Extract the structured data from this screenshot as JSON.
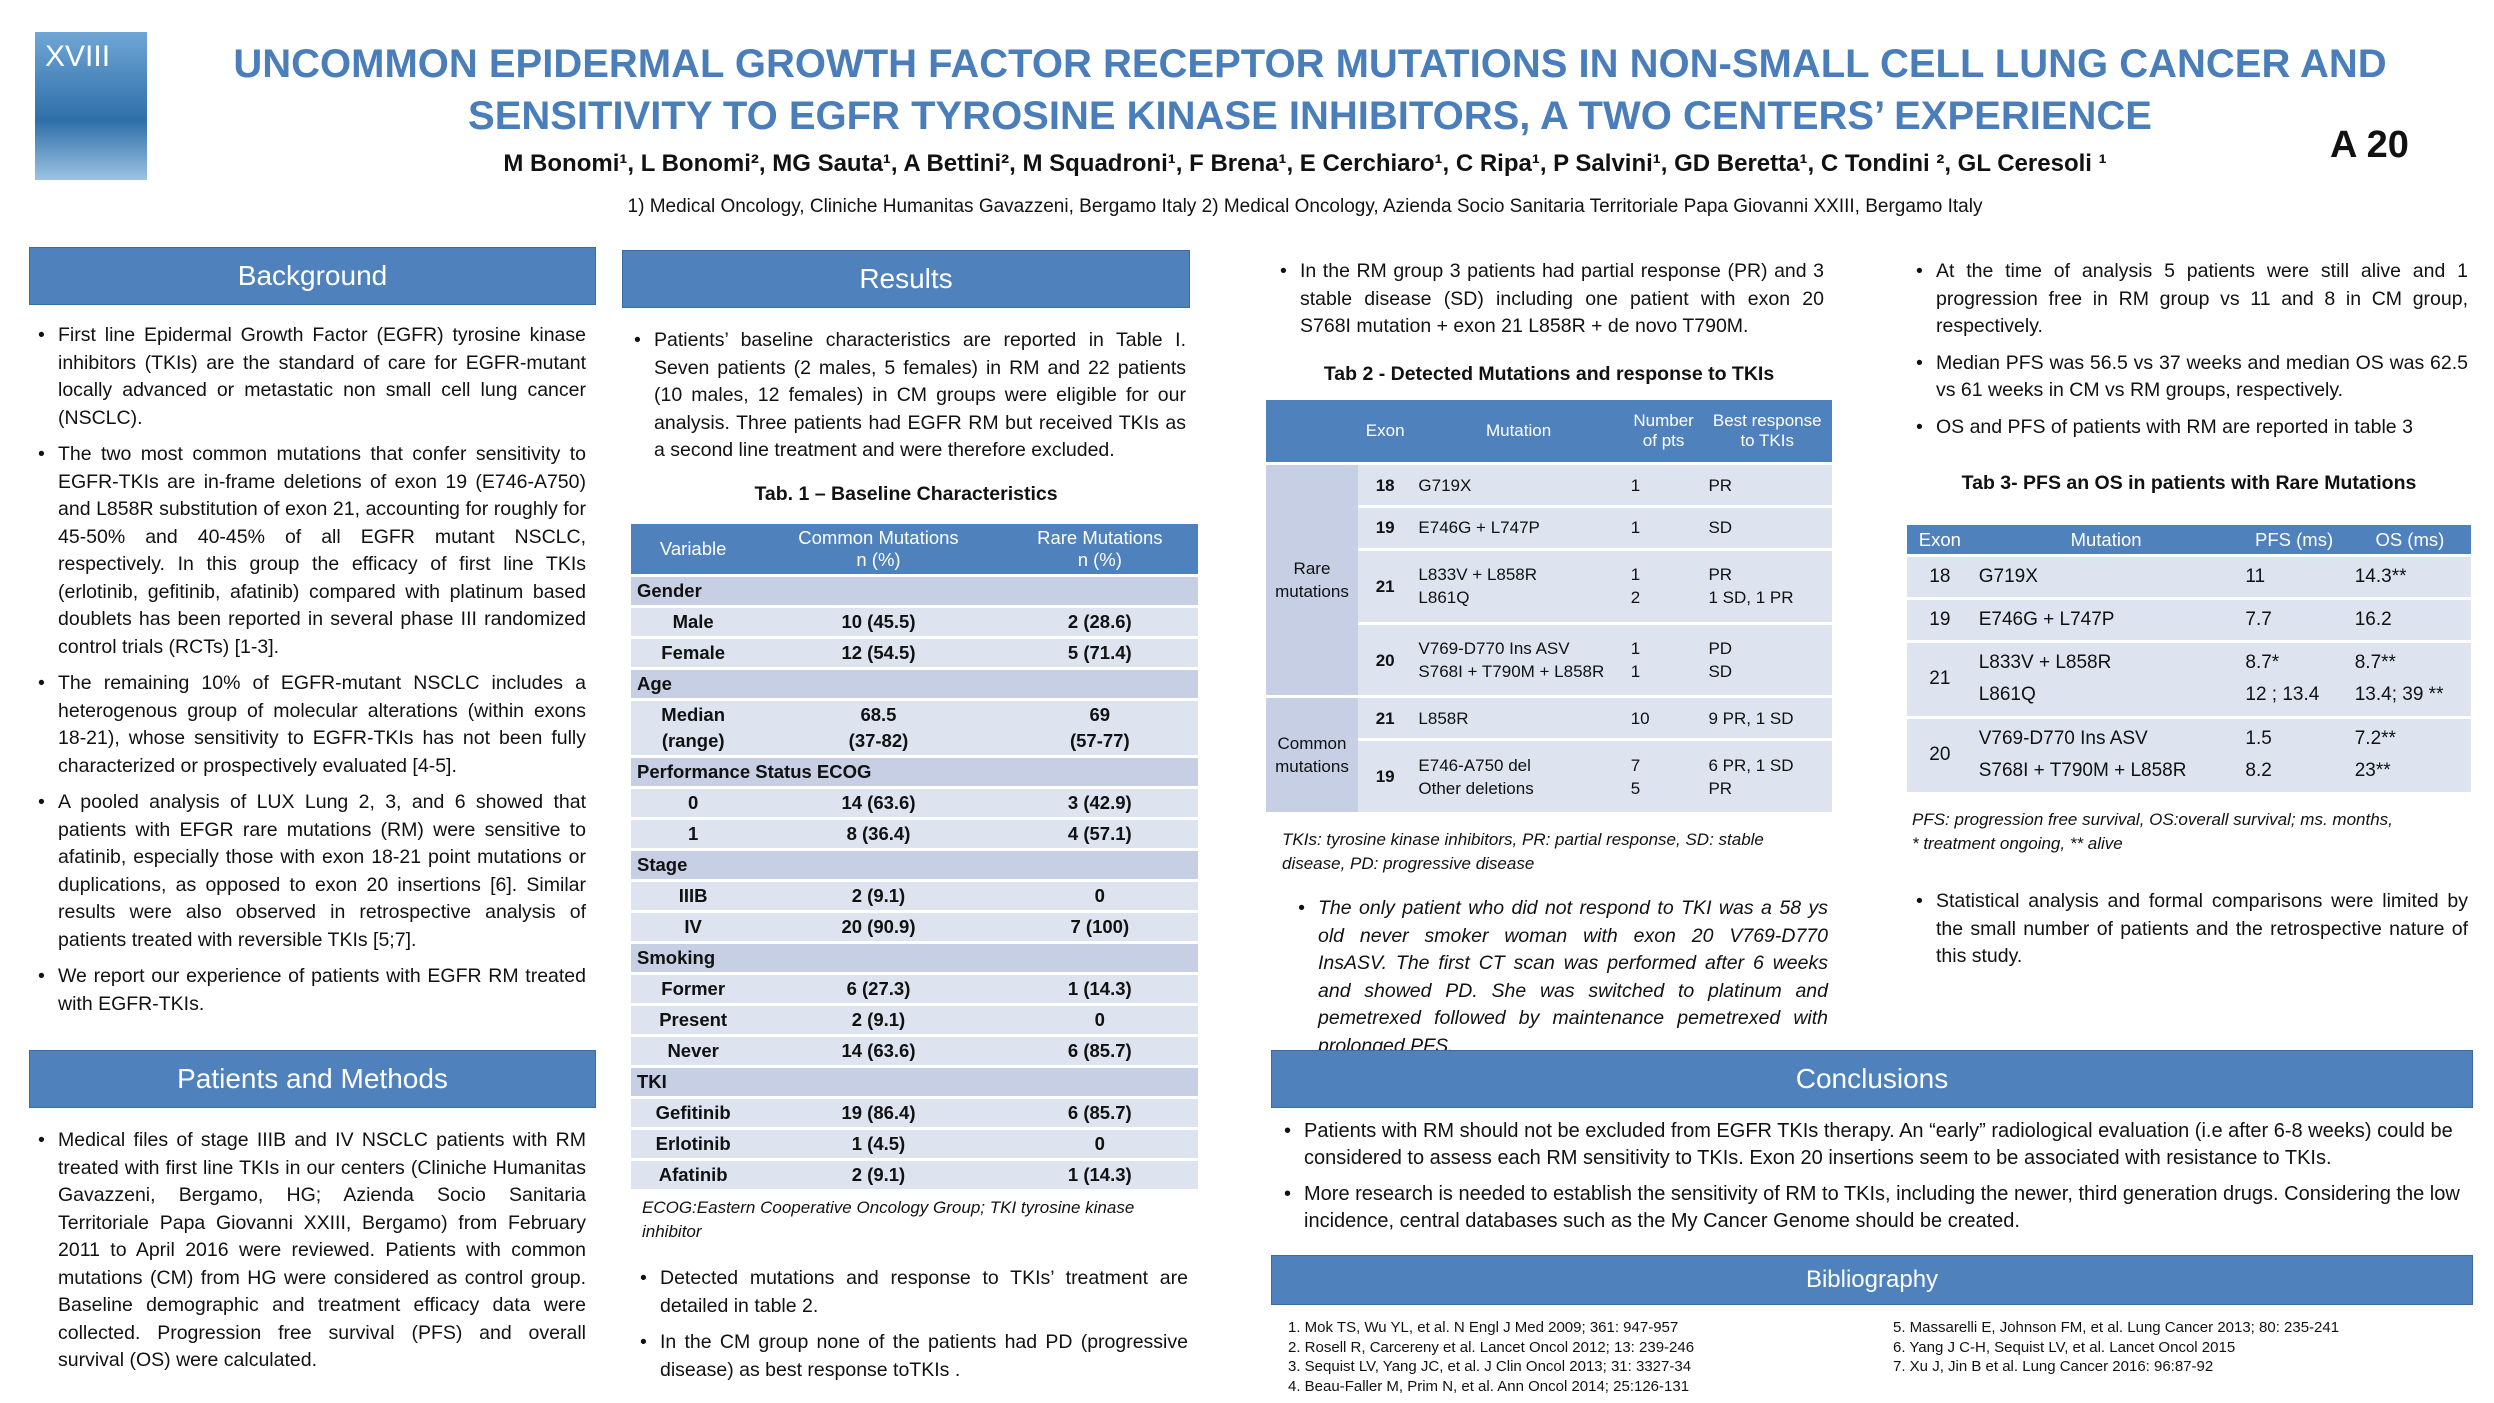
{
  "header": {
    "logo_text": "XVIII",
    "title": "UNCOMMON EPIDERMAL GROWTH FACTOR RECEPTOR MUTATIONS IN NON-SMALL CELL LUNG CANCER AND SENSITIVITY TO EGFR TYROSINE KINASE INHIBITORS, A TWO CENTERS’ EXPERIENCE",
    "authors": "M Bonomi¹, L Bonomi², MG Sauta¹, A Bettini², M Squadroni¹, F Brena¹, E Cerchiaro¹, C Ripa¹, P Salvini¹, GD Beretta¹, C Tondini ², GL Ceresoli ¹",
    "affiliations": "1) Medical Oncology, Cliniche  Humanitas Gavazzeni, Bergamo Italy  2) Medical Oncology, Azienda Socio Sanitaria Territoriale Papa Giovanni XXIII, Bergamo Italy",
    "code": "A 20"
  },
  "background": {
    "heading": "Background",
    "bullets": [
      "First line Epidermal Growth Factor (EGFR) tyrosine kinase inhibitors (TKIs) are the standard of care for EGFR-mutant locally advanced or metastatic non small cell lung cancer (NSCLC).",
      "The two most common mutations that confer sensitivity to EGFR-TKIs are in-frame deletions of exon 19 (E746-A750) and L858R substitution of exon 21, accounting for roughly for 45-50% and 40-45% of all EGFR mutant NSCLC, respectively. In this group the efficacy of first line TKIs (erlotinib, gefitinib, afatinib) compared with platinum based doublets has been reported in several phase III randomized control trials (RCTs) [1-3].",
      "The remaining 10% of EGFR-mutant NSCLC includes a heterogenous group of molecular alterations (within exons 18-21), whose sensitivity to EGFR-TKIs has not been fully characterized or prospectively evaluated [4-5].",
      "A pooled analysis of LUX Lung 2, 3, and 6 showed that patients  with EFGR rare mutations (RM) were sensitive to afatinib, especially those with exon 18-21 point mutations or duplications, as opposed to exon 20 insertions [6]. Similar results were also observed in retrospective analysis of patients treated with reversible TKIs [5;7].",
      "We report our experience of patients with EGFR RM treated with EGFR-TKIs."
    ]
  },
  "patients_methods": {
    "heading": "Patients and Methods",
    "bullets": [
      "Medical files of stage IIIB and IV NSCLC patients with RM treated with first line TKIs in our centers (Cliniche Humanitas Gavazzeni, Bergamo, HG; Azienda Socio Sanitaria Territoriale Papa Giovanni XXIII, Bergamo) from February 2011 to April 2016 were reviewed. Patients with common mutations (CM) from HG were considered as control group. Baseline demographic and treatment efficacy data were collected. Progression free survival (PFS) and overall survival (OS) were calculated."
    ]
  },
  "results": {
    "heading": "Results",
    "bullets_top": [
      "Patients’ baseline characteristics are reported in Table I. Seven patients (2 males, 5 females) in RM and 22 patients (10 males, 12 females) in CM groups were eligible for our analysis. Three patients had EGFR RM but received TKIs as a second line treatment and were therefore excluded."
    ],
    "table1": {
      "title": "Tab. 1 – Baseline Characteristics",
      "header": [
        "Variable",
        "Common Mutations\nn (%)",
        "Rare Mutations\nn (%)"
      ],
      "rows": [
        [
          "Gender"
        ],
        [
          "Male",
          "10 (45.5)",
          "2 (28.6)"
        ],
        [
          "Female",
          "12 (54.5)",
          "5 (71.4)"
        ],
        [
          "Age"
        ],
        [
          "Median\n(range)",
          "68.5\n(37-82)",
          "69\n(57-77)"
        ],
        [
          "Performance Status ECOG"
        ],
        [
          "0",
          "14 (63.6)",
          "3 (42.9)"
        ],
        [
          "1",
          "8 (36.4)",
          "4 (57.1)"
        ],
        [
          "Stage"
        ],
        [
          "IIIB",
          "2 (9.1)",
          "0"
        ],
        [
          "IV",
          "20 (90.9)",
          "7 (100)"
        ],
        [
          "Smoking"
        ],
        [
          "Former",
          "6 (27.3)",
          "1 (14.3)"
        ],
        [
          "Present",
          "2 (9.1)",
          "0"
        ],
        [
          "Never",
          "14 (63.6)",
          "6 (85.7)"
        ],
        [
          "TKI"
        ],
        [
          "Gefitinib",
          "19 (86.4)",
          "6 (85.7)"
        ],
        [
          "Erlotinib",
          "1 (4.5)",
          "0"
        ],
        [
          "Afatinib",
          "2 (9.1)",
          "1 (14.3)"
        ]
      ],
      "note": "ECOG:Eastern Cooperative Oncology Group; TKI tyrosine kinase inhibitor"
    },
    "bullets_bottom": [
      "Detected mutations and response to TKIs’ treatment are detailed in table 2.",
      "In the CM group none of the patients had PD (progressive disease) as best response toTKIs ."
    ],
    "col3_bullets": [
      "In the RM group 3 patients had partial response (PR) and 3 stable disease (SD) including one patient with exon 20 S768I mutation + exon 21 L858R + de novo T790M."
    ],
    "table2": {
      "title": "Tab 2 - Detected Mutations and response to TKIs",
      "header": [
        "Exon",
        "Mutation",
        "Number\nof pts",
        "Best response\nto TKIs"
      ],
      "groups": [
        {
          "label": "Rare\nmutations",
          "rows": [
            [
              "18",
              "G719X",
              "1",
              "PR"
            ],
            [
              "19",
              "E746G + L747P",
              "1",
              "SD"
            ],
            [
              "21",
              "L833V + L858R\nL861Q",
              "1\n2",
              "PR\n1 SD, 1 PR"
            ],
            [
              "20",
              "V769-D770 Ins ASV\nS768I + T790M + L858R",
              "1\n1",
              "PD\nSD"
            ]
          ]
        },
        {
          "label": "Common\nmutations",
          "rows": [
            [
              "21",
              "L858R",
              "10",
              "9 PR, 1 SD"
            ],
            [
              "19",
              "E746-A750 del\nOther deletions",
              "7\n5",
              "6 PR, 1 SD\nPR"
            ]
          ]
        }
      ],
      "note": "TKIs: tyrosine kinase inhibitors, PR: partial response, SD: stable disease, PD: progressive disease"
    },
    "col3_italic": [
      "The only patient who did not respond to TKI was a 58 ys old never smoker woman with exon 20 V769-D770 InsASV. The first CT scan was performed after 6 weeks and showed PD. She was switched to platinum and pemetrexed followed by maintenance pemetrexed with prolonged PFS."
    ],
    "col4_bullets": [
      "At the time of analysis 5 patients were still alive and 1 progression free in RM group vs 11 and 8 in CM group, respectively.",
      "Median PFS was 56.5 vs 37 weeks and median OS was 62.5 vs 61 weeks in CM vs RM groups, respectively.",
      "OS and PFS of patients with RM are reported in table 3"
    ],
    "table3": {
      "title": "Tab 3- PFS an OS in patients with Rare Mutations",
      "header": [
        "Exon",
        "Mutation",
        "PFS (ms)",
        "OS (ms)"
      ],
      "rows": [
        [
          "18",
          "G719X",
          "11",
          "14.3**"
        ],
        [
          "19",
          "E746G + L747P",
          "7.7",
          "16.2"
        ],
        [
          "21",
          "L833V + L858R\nL861Q",
          "8.7*\n12 ; 13.4",
          "8.7**\n13.4; 39 **"
        ],
        [
          "20",
          "V769-D770 Ins ASV\nS768I + T790M + L858R",
          "1.5\n8.2",
          "7.2**\n23**"
        ]
      ],
      "notes": [
        "PFS: progression free survival, OS:overall survival; ms. months,",
        "* treatment ongoing, ** alive"
      ]
    },
    "col4_bottom": [
      "Statistical analysis and formal comparisons were limited by the small number of patients and the retrospective nature of this study."
    ]
  },
  "conclusions": {
    "heading": "Conclusions",
    "bullets": [
      "Patients with RM should not be excluded from EGFR TKIs therapy. An “early” radiological evaluation (i.e after 6-8 weeks) could be considered to assess each RM sensitivity to TKIs. Exon 20 insertions seem to be associated with resistance to TKIs.",
      "More research is needed to establish the sensitivity of RM to TKIs, including the newer, third generation drugs. Considering the low incidence, central databases such as the My Cancer Genome should be created."
    ]
  },
  "bibliography": {
    "heading": "Bibliography",
    "left": [
      "1. Mok TS, Wu YL, et al. N Engl J Med 2009; 361: 947-957",
      "2. Rosell R, Carcereny et al. Lancet Oncol 2012; 13: 239-246",
      "3. Sequist LV, Yang JC, et al. J Clin Oncol 2013; 31: 3327-34",
      "4. Beau-Faller M, Prim N, et al. Ann Oncol 2014; 25:126-131"
    ],
    "right": [
      "5. Massarelli E, Johnson FM, et al. Lung Cancer 2013; 80: 235-241",
      "6. Yang J C-H, Sequist LV, et al. Lancet Oncol 2015",
      "7. Xu J, Jin B et al. Lung Cancer 2016: 96:87-92"
    ]
  }
}
